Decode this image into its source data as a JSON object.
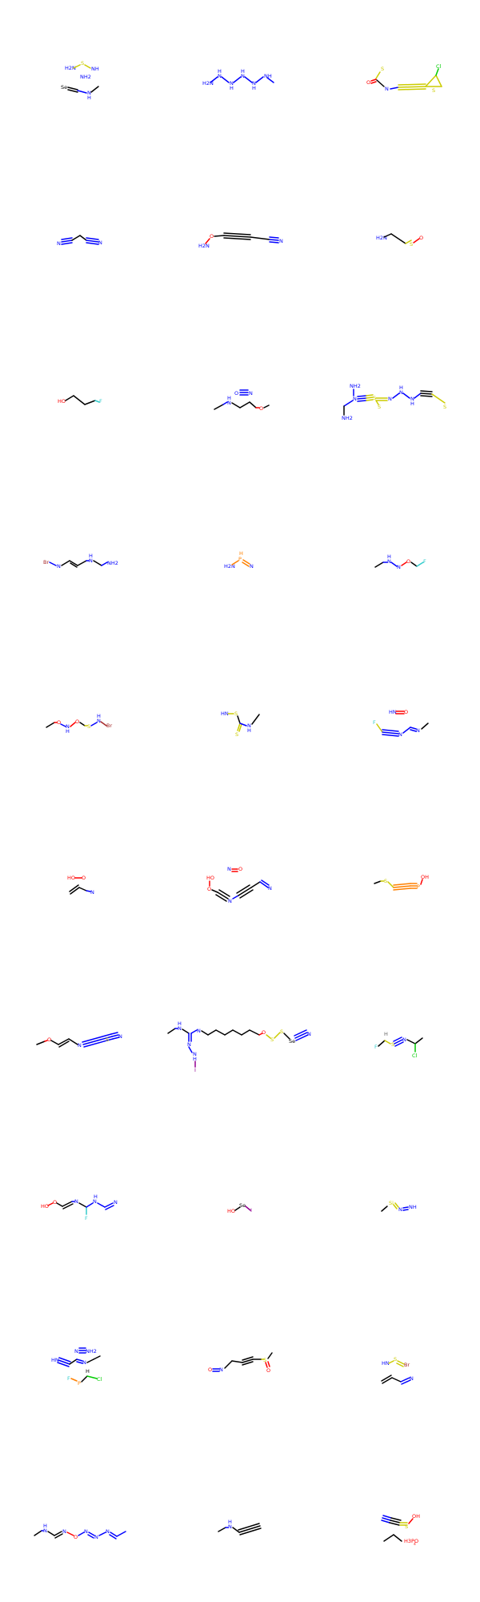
{
  "colors": {
    "carbon": "#000000",
    "nitrogen": "#0000ff",
    "oxygen": "#ff0000",
    "sulfur": "#cccc00",
    "fluorine": "#33cccc",
    "chlorine": "#00cc00",
    "phosphorus": "#ff8000",
    "bromine": "#a62929",
    "iodine": "#940094",
    "hydrogen": "#666666"
  },
  "molecules": [
    {
      "id": "m1",
      "labels": [
        "H2N",
        "S",
        "NH",
        "NH2",
        "Se",
        "H",
        "N"
      ]
    },
    {
      "id": "m2",
      "labels": [
        "H2N",
        "N",
        "H",
        "N",
        "H",
        "N",
        "H",
        "N",
        "H",
        "NH"
      ]
    },
    {
      "id": "m3",
      "labels": [
        "S",
        "O",
        "N",
        "S",
        "Cl"
      ]
    },
    {
      "id": "m4",
      "labels": [
        "N",
        "N"
      ]
    },
    {
      "id": "m5",
      "labels": [
        "H2N",
        "O",
        "N"
      ]
    },
    {
      "id": "m6",
      "labels": [
        "H2N",
        "S",
        "O"
      ]
    },
    {
      "id": "m7",
      "labels": [
        "HO",
        "F"
      ]
    },
    {
      "id": "m8",
      "labels": [
        "N",
        "H",
        "N",
        "O"
      ]
    },
    {
      "id": "m9",
      "labels": [
        "NH2",
        "N",
        "NH2",
        "S",
        "S",
        "N",
        "H",
        "N",
        "H",
        "N",
        "S"
      ]
    },
    {
      "id": "m10",
      "labels": [
        "Br",
        "N",
        "H",
        "N",
        "NH2"
      ]
    },
    {
      "id": "m11",
      "labels": [
        "H2N",
        "H",
        "P",
        "N"
      ]
    },
    {
      "id": "m12",
      "labels": [
        "N",
        "H",
        "N",
        "O",
        "F"
      ]
    },
    {
      "id": "m13",
      "labels": [
        "O",
        "N",
        "H",
        "O",
        "S",
        "N",
        "H",
        "Br"
      ]
    },
    {
      "id": "m14",
      "labels": [
        "HN",
        "S",
        "S",
        "N",
        "H"
      ]
    },
    {
      "id": "m15",
      "labels": [
        "HN",
        "O",
        "F",
        "N",
        "N"
      ]
    },
    {
      "id": "m16",
      "labels": [
        "HO",
        "O",
        "N"
      ]
    },
    {
      "id": "m17",
      "labels": [
        "N",
        "O",
        "HO",
        "O",
        "N",
        "N"
      ]
    },
    {
      "id": "m18",
      "labels": [
        "S",
        "P",
        "OH"
      ]
    },
    {
      "id": "m19",
      "labels": [
        "O",
        "N",
        "S",
        "N"
      ]
    },
    {
      "id": "m20",
      "labels": [
        "N",
        "H",
        "N",
        "N",
        "N",
        "H",
        "I",
        "O",
        "S",
        "S",
        "Se",
        "N"
      ]
    },
    {
      "id": "m21",
      "labels": [
        "H",
        "F",
        "S",
        "N",
        "Cl"
      ]
    },
    {
      "id": "m22",
      "labels": [
        "HO",
        "O",
        "N",
        "F",
        "H",
        "N",
        "N"
      ]
    },
    {
      "id": "m23",
      "labels": [
        "HO",
        "Se",
        "I"
      ]
    },
    {
      "id": "m24",
      "labels": [
        "Si",
        "N",
        "NH"
      ]
    },
    {
      "id": "m25",
      "labels": [
        "N",
        "NH2",
        "HN",
        "N",
        "F",
        "H",
        "P",
        "Cl"
      ]
    },
    {
      "id": "m26",
      "labels": [
        "O",
        "N",
        "S",
        "O"
      ]
    },
    {
      "id": "m27",
      "labels": [
        "HN",
        "S",
        "Br",
        "N"
      ]
    },
    {
      "id": "m28",
      "labels": [
        "N",
        "H",
        "N",
        "O",
        "N",
        "N",
        "N"
      ]
    },
    {
      "id": "m29",
      "labels": [
        "N",
        "H"
      ]
    },
    {
      "id": "m30",
      "labels": [
        "N",
        "S",
        "OH",
        "H3PO",
        "4"
      ]
    }
  ]
}
